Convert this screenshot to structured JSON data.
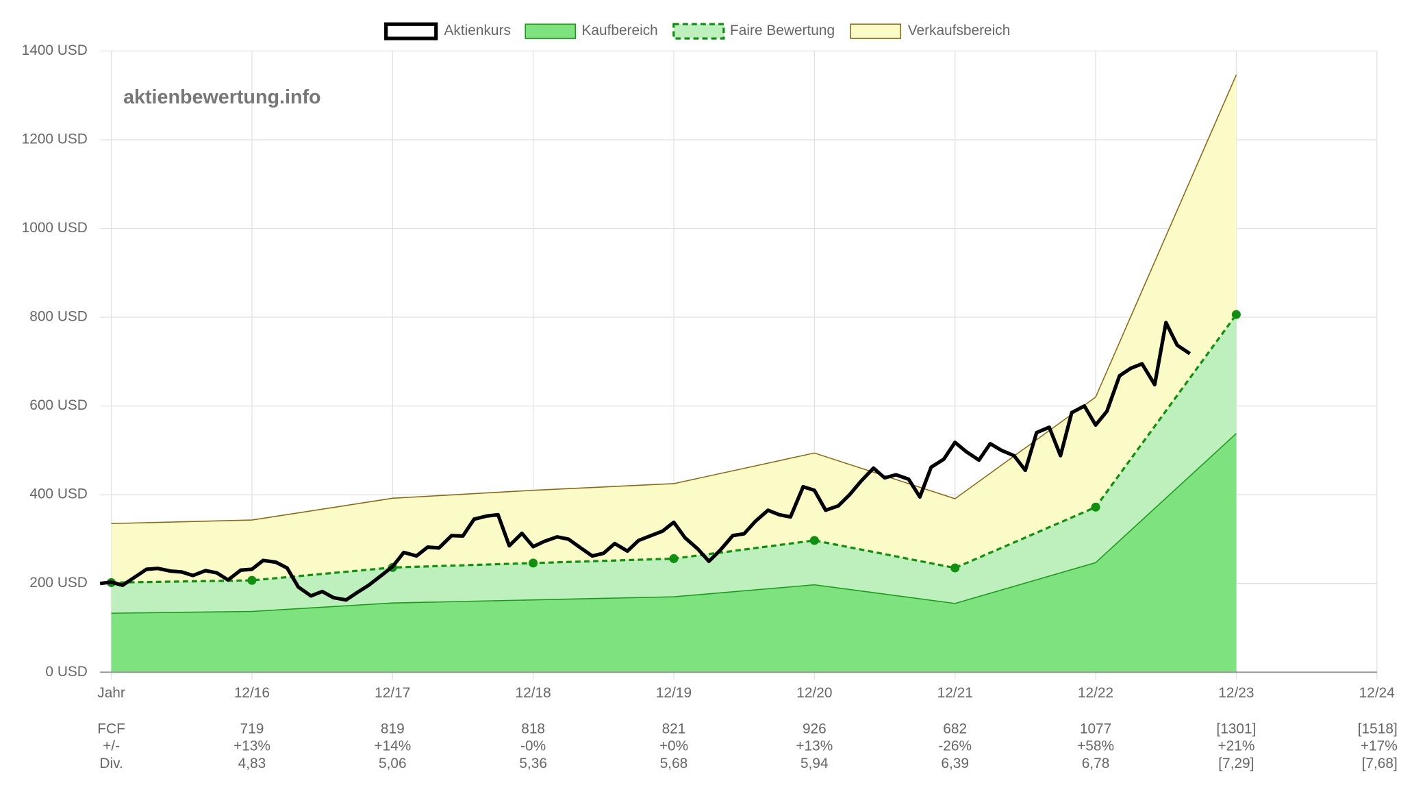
{
  "chart_data": {
    "type": "line",
    "annotation": "aktienbewertung.info",
    "xlim": [
      2014.92,
      2024
    ],
    "xticks": [
      {
        "value": 2015,
        "label": "Jahr"
      },
      {
        "value": 2016,
        "label": "12/16"
      },
      {
        "value": 2017,
        "label": "12/17"
      },
      {
        "value": 2018,
        "label": "12/18"
      },
      {
        "value": 2019,
        "label": "12/19"
      },
      {
        "value": 2020,
        "label": "12/20"
      },
      {
        "value": 2021,
        "label": "12/21"
      },
      {
        "value": 2022,
        "label": "12/22"
      },
      {
        "value": 2023,
        "label": "12/23"
      },
      {
        "value": 2024,
        "label": "12/24"
      }
    ],
    "ylim": [
      0,
      1400
    ],
    "yticks": [
      {
        "value": 0,
        "label": "0 USD"
      },
      {
        "value": 200,
        "label": "200 USD"
      },
      {
        "value": 400,
        "label": "400 USD"
      },
      {
        "value": 600,
        "label": "600 USD"
      },
      {
        "value": 800,
        "label": "800 USD"
      },
      {
        "value": 1000,
        "label": "1000 USD"
      },
      {
        "value": 1200,
        "label": "1200 USD"
      },
      {
        "value": 1400,
        "label": "1400 USD"
      }
    ],
    "grid": true,
    "legend": "top",
    "x": [
      2015,
      2016,
      2017,
      2018,
      2019,
      2020,
      2021,
      2022,
      2023
    ],
    "series": [
      {
        "name": "Aktienkurs",
        "color": "#000000",
        "x": [
          2014.92,
          2015,
          2015.08,
          2015.17,
          2015.25,
          2015.33,
          2015.42,
          2015.5,
          2015.58,
          2015.67,
          2015.75,
          2015.83,
          2015.92,
          2016,
          2016.08,
          2016.17,
          2016.25,
          2016.33,
          2016.42,
          2016.5,
          2016.58,
          2016.67,
          2016.75,
          2016.83,
          2016.92,
          2017,
          2017.08,
          2017.17,
          2017.25,
          2017.33,
          2017.42,
          2017.5,
          2017.58,
          2017.67,
          2017.75,
          2017.83,
          2017.92,
          2018,
          2018.08,
          2018.17,
          2018.25,
          2018.33,
          2018.42,
          2018.5,
          2018.58,
          2018.67,
          2018.75,
          2018.83,
          2018.92,
          2019,
          2019.08,
          2019.17,
          2019.25,
          2019.33,
          2019.42,
          2019.5,
          2019.58,
          2019.67,
          2019.75,
          2019.83,
          2019.92,
          2020,
          2020.08,
          2020.17,
          2020.25,
          2020.33,
          2020.42,
          2020.5,
          2020.58,
          2020.67,
          2020.75,
          2020.83,
          2020.92,
          2021,
          2021.08,
          2021.17,
          2021.25,
          2021.33,
          2021.42,
          2021.5,
          2021.58,
          2021.67,
          2021.75,
          2021.83,
          2021.92,
          2022,
          2022.08,
          2022.17,
          2022.25,
          2022.33,
          2022.42,
          2022.5,
          2022.58,
          2022.67
        ],
        "values": [
          200,
          203,
          196,
          215,
          232,
          234,
          228,
          226,
          218,
          229,
          224,
          208,
          230,
          232,
          252,
          248,
          235,
          192,
          172,
          182,
          168,
          163,
          180,
          196,
          218,
          238,
          270,
          262,
          282,
          280,
          308,
          307,
          345,
          352,
          355,
          285,
          313,
          283,
          295,
          305,
          300,
          282,
          262,
          268,
          290,
          273,
          297,
          307,
          318,
          338,
          303,
          278,
          250,
          275,
          308,
          312,
          340,
          365,
          355,
          350,
          418,
          410,
          365,
          375,
          400,
          430,
          460,
          438,
          445,
          435,
          395,
          462,
          480,
          518,
          497,
          478,
          515,
          500,
          488,
          455,
          540,
          552,
          488,
          585,
          600,
          557,
          588,
          668,
          685,
          695,
          648,
          788,
          737,
          718
        ]
      },
      {
        "name": "Kaufbereich",
        "color": "#7ee27e",
        "values": [
          133,
          137,
          156,
          163,
          170,
          197,
          155,
          247,
          538
        ]
      },
      {
        "name": "Faire Bewertung",
        "color": "#bdf0bd",
        "values": [
          202,
          207,
          236,
          246,
          256,
          297,
          235,
          372,
          806
        ]
      },
      {
        "name": "Verkaufsbereich",
        "color": "#fbfbc8",
        "values": [
          335,
          343,
          392,
          410,
          425,
          494,
          391,
          620,
          1346
        ]
      }
    ]
  },
  "table": {
    "row_labels": [
      "FCF",
      "+/-",
      "Div."
    ],
    "columns": [
      [
        "719",
        "+13%",
        "4,83"
      ],
      [
        "819",
        "+14%",
        "5,06"
      ],
      [
        "818",
        "-0%",
        "5,36"
      ],
      [
        "821",
        "+0%",
        "5,68"
      ],
      [
        "926",
        "+13%",
        "5,94"
      ],
      [
        "682",
        "-26%",
        "6,39"
      ],
      [
        "1077",
        "+58%",
        "6,78"
      ],
      [
        "[1301]",
        "+21%",
        "[7,29]"
      ],
      [
        "[1518]",
        "+17%",
        "[7,68]"
      ]
    ]
  }
}
